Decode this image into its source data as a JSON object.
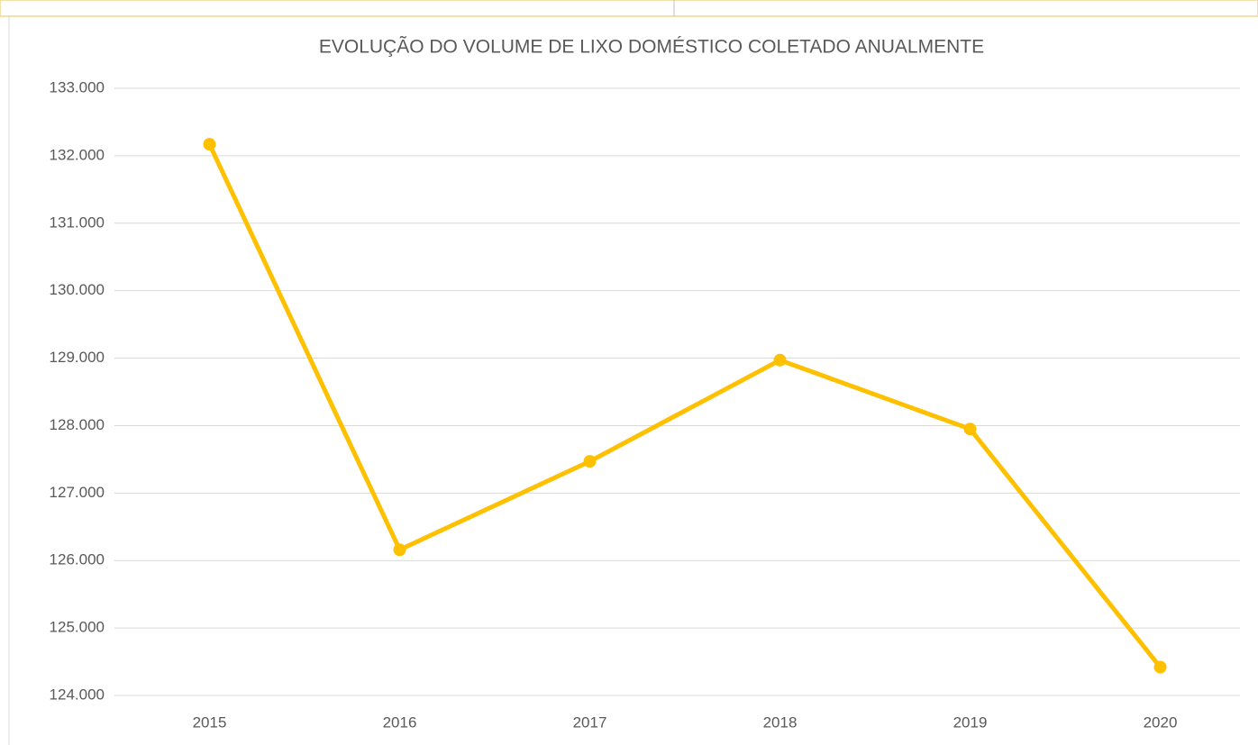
{
  "chart_data": {
    "type": "line",
    "title": "EVOLUÇÃO DO VOLUME DE LIXO DOMÉSTICO COLETADO ANUALMENTE",
    "categories": [
      "2015",
      "2016",
      "2017",
      "2018",
      "2019",
      "2020"
    ],
    "values": [
      132170,
      126160,
      127470,
      128970,
      127950,
      124420
    ],
    "color": "#ffc000",
    "ylim": [
      124000,
      133000
    ],
    "yticks": [
      {
        "value": 124000,
        "label": "124.000"
      },
      {
        "value": 125000,
        "label": "125.000"
      },
      {
        "value": 126000,
        "label": "126.000"
      },
      {
        "value": 127000,
        "label": "127.000"
      },
      {
        "value": 128000,
        "label": "128.000"
      },
      {
        "value": 129000,
        "label": "129.000"
      },
      {
        "value": 130000,
        "label": "130.000"
      },
      {
        "value": 131000,
        "label": "131.000"
      },
      {
        "value": 132000,
        "label": "132.000"
      },
      {
        "value": 133000,
        "label": "133.000"
      }
    ],
    "grid": true
  }
}
